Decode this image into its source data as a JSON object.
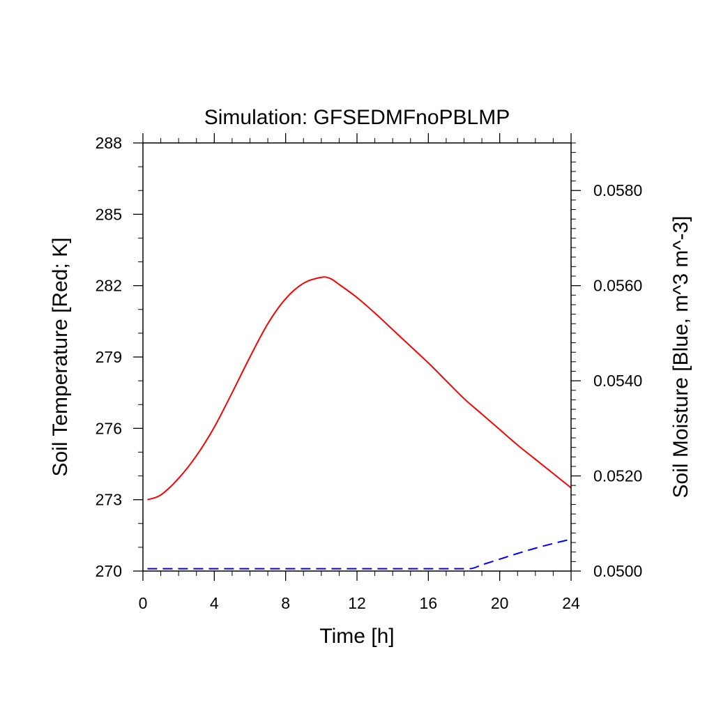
{
  "chart_data": {
    "type": "line",
    "title": "Simulation: GFSEDMFnoPBLMP",
    "xlabel": "Time [h]",
    "ylabel_left": "Soil Temperature [Red; K]",
    "ylabel_right": "Soil Moisture [Blue, m^3 m^-3]",
    "xlim": [
      0,
      24
    ],
    "ylim_left": [
      270,
      288
    ],
    "ylim_right": [
      0.05,
      0.059
    ],
    "x_ticks": [
      "0",
      "4",
      "8",
      "12",
      "16",
      "20",
      "24"
    ],
    "y_left_ticks": [
      "270",
      "273",
      "276",
      "279",
      "282",
      "285",
      "288"
    ],
    "y_right_ticks": [
      "0.0500",
      "0.0520",
      "0.0540",
      "0.0560",
      "0.0580"
    ],
    "grid": false,
    "series": [
      {
        "axis": "left",
        "color": "#ff0000",
        "style": "solid",
        "x": [
          0.25,
          1,
          2,
          3,
          4,
          5,
          6,
          7,
          8,
          9,
          10,
          10.5,
          11,
          12,
          13,
          14,
          15,
          16,
          17,
          18,
          19,
          20,
          21,
          22,
          23,
          24
        ],
        "values": [
          273.0,
          273.2,
          273.9,
          274.85,
          276.05,
          277.5,
          279.0,
          280.4,
          281.45,
          282.1,
          282.35,
          282.3,
          282.05,
          281.5,
          280.85,
          280.15,
          279.45,
          278.75,
          278.0,
          277.25,
          276.6,
          275.95,
          275.3,
          274.7,
          274.1,
          273.5
        ]
      },
      {
        "axis": "right",
        "color": "#0000ff",
        "style": "dashed",
        "x": [
          0.25,
          2,
          4,
          6,
          8,
          10,
          12,
          14,
          16,
          18,
          18.5,
          19,
          20,
          21,
          22,
          23,
          24
        ],
        "values": [
          0.05005,
          0.05005,
          0.05005,
          0.05005,
          0.05005,
          0.05005,
          0.05005,
          0.05005,
          0.05005,
          0.05005,
          0.05006,
          0.05013,
          0.05025,
          0.05037,
          0.05048,
          0.05058,
          0.05067
        ]
      }
    ]
  }
}
